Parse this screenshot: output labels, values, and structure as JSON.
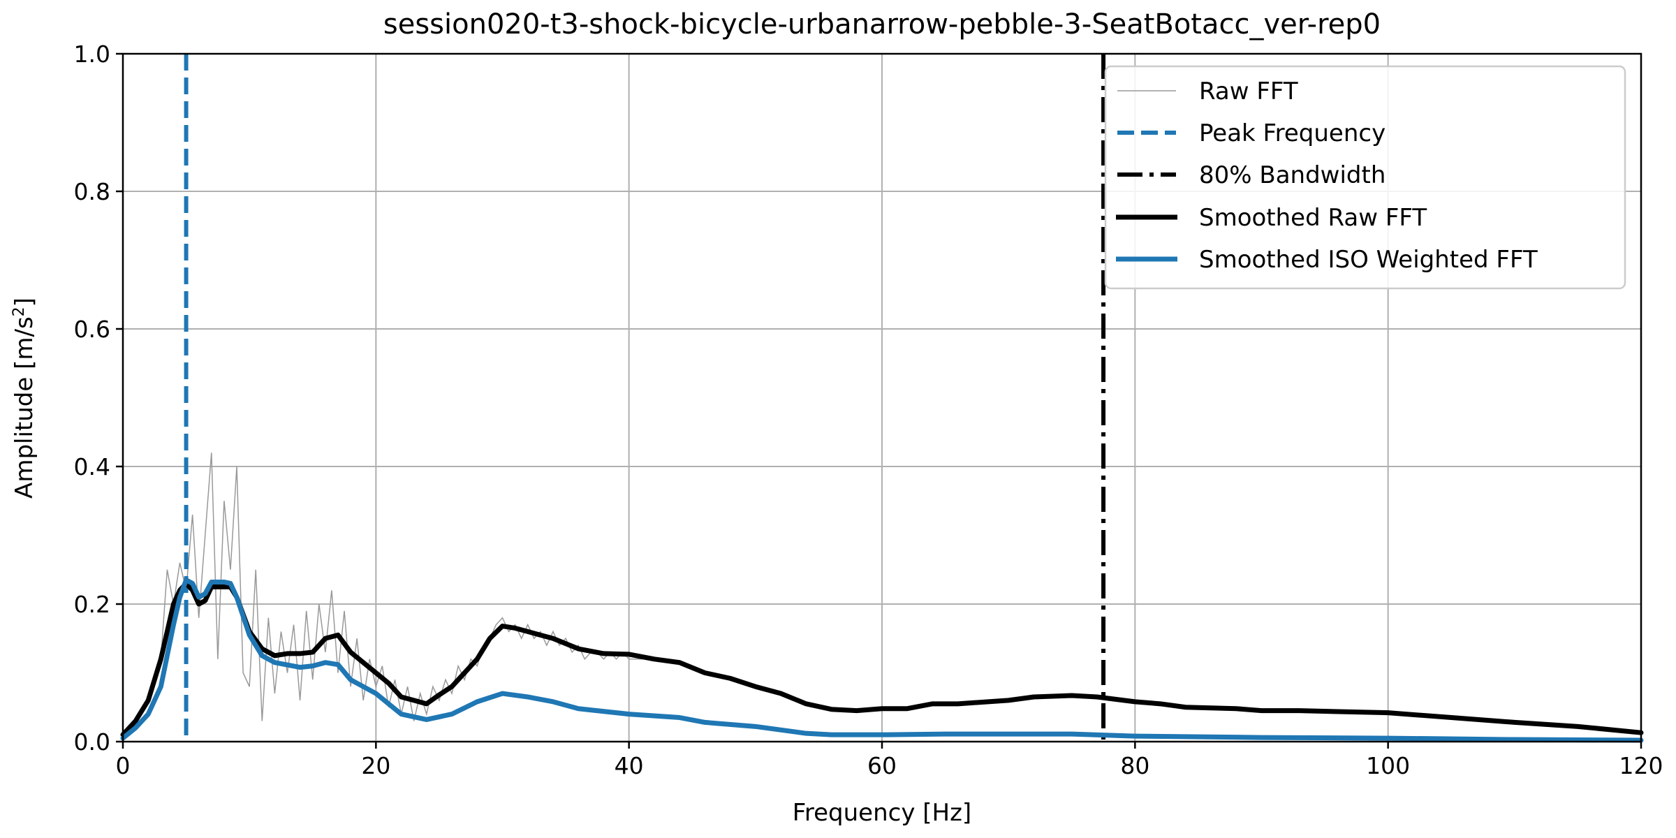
{
  "chart_data": {
    "type": "line",
    "title": "session020-t3-shock-bicycle-urbanarrow-pebble-3-SeatBotacc_ver-rep0",
    "xlabel": "Frequency [Hz]",
    "ylabel": "Amplitude [m/s²]",
    "ylabel_base": "Amplitude [m/s",
    "ylabel_sup": "2",
    "ylabel_end": "]",
    "xlim": [
      0,
      120
    ],
    "ylim": [
      0,
      1.0
    ],
    "xticks": [
      0,
      20,
      40,
      60,
      80,
      100,
      120
    ],
    "xtick_labels": [
      "0",
      "20",
      "40",
      "60",
      "80",
      "100",
      "120"
    ],
    "yticks": [
      0,
      0.2,
      0.4,
      0.6,
      0.8,
      1.0
    ],
    "ytick_labels": [
      "0.0",
      "0.2",
      "0.4",
      "0.6",
      "0.8",
      "1.0"
    ],
    "grid": true,
    "legend_position": "top-right",
    "peak_frequency": 5.0,
    "bandwidth_80": 77.5,
    "colors": {
      "raw": "#999999",
      "peak": "#1f77b4",
      "bandwidth": "#000000",
      "smoothed_raw": "#000000",
      "smoothed_iso": "#1f77b4"
    },
    "legend": [
      "Raw FFT",
      "Peak Frequency",
      "80% Bandwidth",
      "Smoothed Raw FFT",
      "Smoothed ISO Weighted FFT"
    ],
    "series": [
      {
        "name": "Raw FFT",
        "x_start": 0,
        "x_step": 0.5,
        "values": [
          0.01,
          0.02,
          0.03,
          0.05,
          0.06,
          0.09,
          0.12,
          0.25,
          0.2,
          0.26,
          0.22,
          0.33,
          0.18,
          0.3,
          0.42,
          0.12,
          0.35,
          0.25,
          0.4,
          0.1,
          0.08,
          0.25,
          0.03,
          0.18,
          0.07,
          0.16,
          0.1,
          0.17,
          0.06,
          0.19,
          0.09,
          0.2,
          0.13,
          0.22,
          0.1,
          0.19,
          0.08,
          0.15,
          0.06,
          0.12,
          0.08,
          0.11,
          0.05,
          0.09,
          0.04,
          0.08,
          0.03,
          0.07,
          0.04,
          0.08,
          0.06,
          0.09,
          0.07,
          0.11,
          0.09,
          0.12,
          0.11,
          0.14,
          0.15,
          0.17,
          0.18,
          0.16,
          0.17,
          0.15,
          0.17,
          0.15,
          0.16,
          0.14,
          0.16,
          0.14,
          0.15,
          0.13,
          0.14,
          0.12,
          0.13,
          0.13,
          0.12,
          0.13,
          0.12,
          0.13,
          0.12
        ]
      },
      {
        "name": "Smoothed Raw FFT",
        "x": [
          0,
          1,
          2,
          3,
          4,
          4.5,
          5,
          5.5,
          6,
          6.5,
          7,
          8,
          8.5,
          9,
          10,
          11,
          12,
          13,
          14,
          15,
          16,
          17,
          18,
          20,
          21,
          22,
          23,
          24,
          25,
          26,
          27,
          28,
          29,
          30,
          31,
          32,
          33,
          34,
          36,
          38,
          40,
          42,
          44,
          46,
          48,
          50,
          52,
          54,
          56,
          58,
          60,
          62,
          64,
          66,
          70,
          72,
          75,
          77,
          80,
          82,
          84,
          88,
          90,
          93,
          100,
          105,
          110,
          115,
          120
        ],
        "y": [
          0.01,
          0.03,
          0.06,
          0.12,
          0.2,
          0.22,
          0.23,
          0.22,
          0.2,
          0.205,
          0.225,
          0.225,
          0.225,
          0.21,
          0.16,
          0.135,
          0.125,
          0.128,
          0.128,
          0.13,
          0.15,
          0.155,
          0.13,
          0.1,
          0.085,
          0.065,
          0.06,
          0.055,
          0.068,
          0.08,
          0.1,
          0.12,
          0.15,
          0.168,
          0.165,
          0.16,
          0.155,
          0.15,
          0.135,
          0.128,
          0.127,
          0.12,
          0.115,
          0.1,
          0.092,
          0.08,
          0.07,
          0.055,
          0.047,
          0.045,
          0.048,
          0.048,
          0.055,
          0.055,
          0.06,
          0.065,
          0.067,
          0.065,
          0.058,
          0.055,
          0.05,
          0.048,
          0.045,
          0.045,
          0.042,
          0.035,
          0.028,
          0.022,
          0.013
        ]
      },
      {
        "name": "Smoothed ISO Weighted FFT",
        "x": [
          0,
          1,
          2,
          3,
          4,
          4.5,
          5,
          5.5,
          6,
          6.5,
          7,
          8,
          8.5,
          9,
          10,
          11,
          12,
          14,
          15,
          16,
          17,
          18,
          20,
          22,
          24,
          26,
          28,
          30,
          32,
          34,
          36,
          40,
          44,
          46,
          50,
          54,
          56,
          60,
          65,
          75,
          80,
          90,
          100,
          110,
          120
        ],
        "y": [
          0.005,
          0.02,
          0.04,
          0.08,
          0.17,
          0.21,
          0.235,
          0.23,
          0.21,
          0.215,
          0.232,
          0.232,
          0.23,
          0.21,
          0.155,
          0.125,
          0.115,
          0.108,
          0.11,
          0.115,
          0.112,
          0.09,
          0.07,
          0.04,
          0.032,
          0.04,
          0.058,
          0.07,
          0.065,
          0.058,
          0.048,
          0.04,
          0.035,
          0.028,
          0.022,
          0.012,
          0.01,
          0.01,
          0.011,
          0.011,
          0.008,
          0.006,
          0.005,
          0.003,
          0.002
        ]
      }
    ]
  }
}
